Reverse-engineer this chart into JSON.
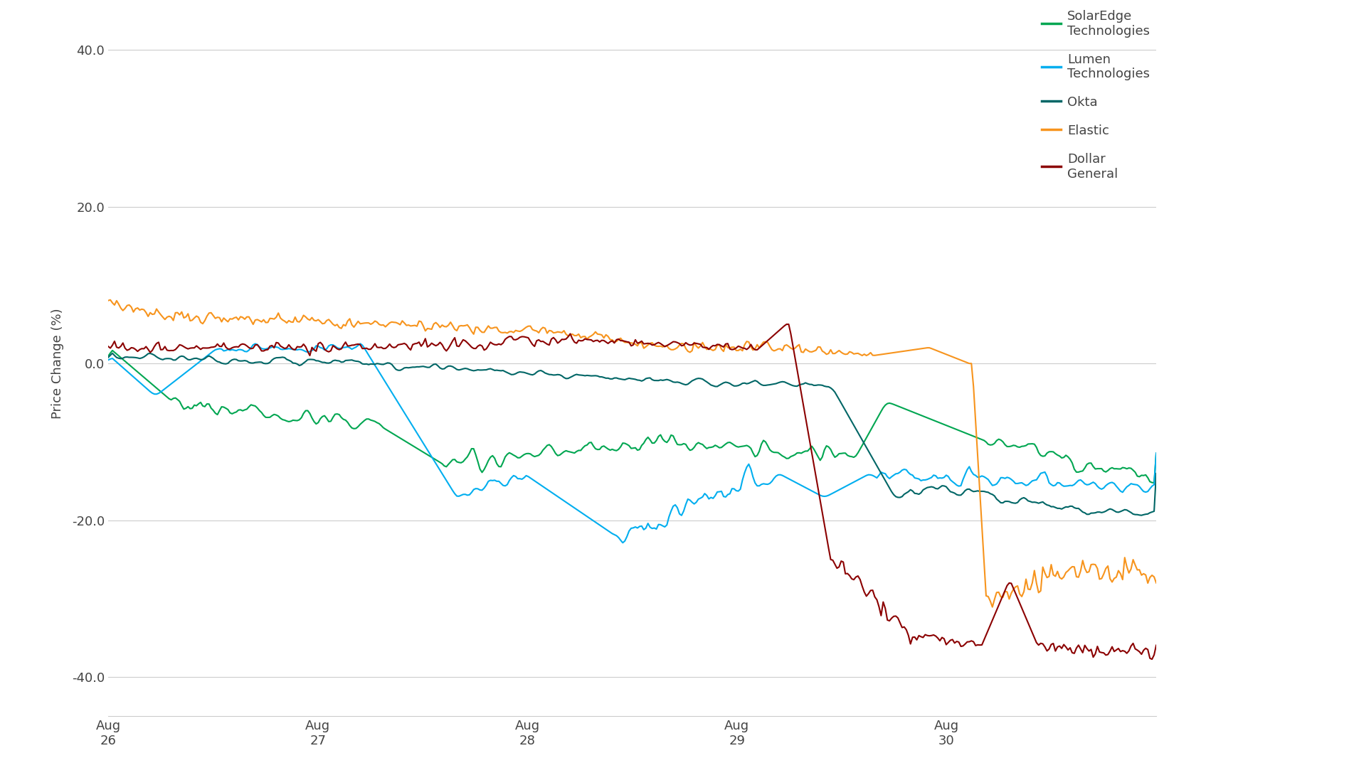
{
  "title": "",
  "ylabel": "Price Change (%)",
  "ylim": [
    -45,
    45
  ],
  "yticks": [
    -40.0,
    -20.0,
    0.0,
    20.0,
    40.0
  ],
  "background_color": "#ffffff",
  "grid_color": "#cccccc",
  "series": [
    {
      "label": "SolarEdge\nTechnologies",
      "color": "#00a651",
      "linewidth": 1.5
    },
    {
      "label": "Lumen\nTechnologies",
      "color": "#00aeef",
      "linewidth": 1.5
    },
    {
      "label": "Okta",
      "color": "#006666",
      "linewidth": 1.5
    },
    {
      "label": "Elastic",
      "color": "#f7941d",
      "linewidth": 1.5
    },
    {
      "label": "Dollar\nGeneral",
      "color": "#8b0000",
      "linewidth": 1.5
    }
  ],
  "xtick_labels": [
    "Aug\n26",
    "Aug\n27",
    "Aug\n28",
    "Aug\n29",
    "Aug\n30"
  ],
  "n_points": 500
}
